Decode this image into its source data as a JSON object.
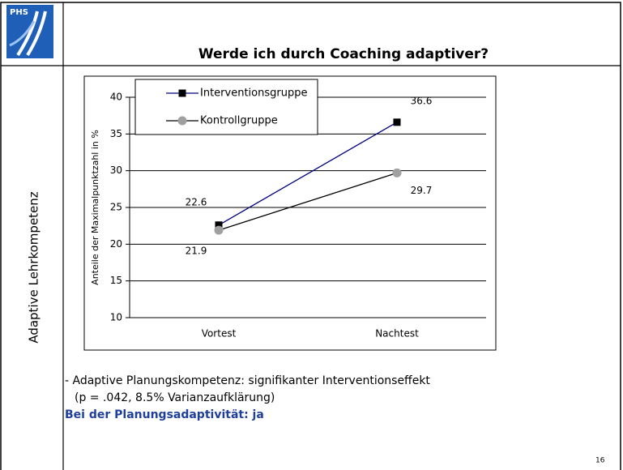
{
  "logo": "PHS",
  "title": "Werde ich durch Coaching adaptiver?",
  "side_label": "Adaptive Lehrkompetenz",
  "notes": [
    "- Adaptive Planungskompetenz: signifikanter Interventionseffekt",
    "(p = .042, 8.5% Varianzaufklärung)"
  ],
  "conclusion": "Bei der Planungsadaptivität: ja",
  "page_number": "16",
  "chart_data": {
    "type": "line",
    "ylabel": "Anteile der Maximalpunktzahl in %",
    "categories": [
      "Vortest",
      "Nachtest"
    ],
    "series": [
      {
        "name": "Interventionsgruppe",
        "color": "#000080",
        "marker": "square",
        "marker_color": "#000000",
        "values": [
          22.6,
          36.6
        ]
      },
      {
        "name": "Kontrollgruppe",
        "color": "#000000",
        "marker": "circle",
        "marker_color": "#a0a0a0",
        "values": [
          21.9,
          29.7
        ]
      }
    ],
    "ylim": [
      10,
      40
    ],
    "yticks": [
      10,
      15,
      20,
      25,
      30,
      35,
      40
    ],
    "grid": true,
    "legend": "top-left"
  }
}
